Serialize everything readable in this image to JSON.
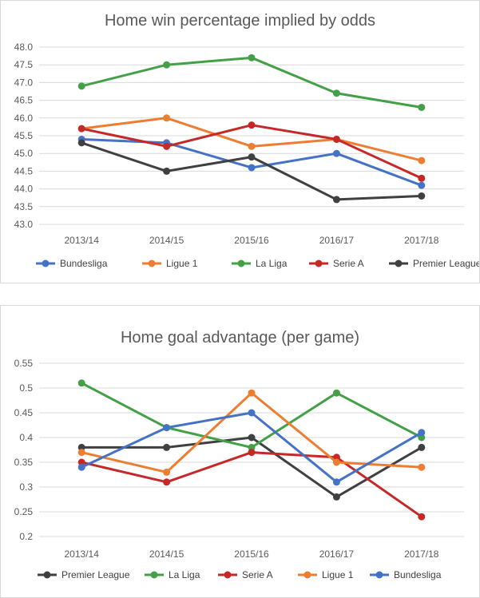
{
  "charts": [
    {
      "type": "line",
      "title": "Home win percentage implied by odds",
      "categories": [
        "2013/14",
        "2014/15",
        "2015/16",
        "2016/17",
        "2017/18"
      ],
      "y_ticks": [
        "43.0",
        "43.5",
        "44.0",
        "44.5",
        "45.0",
        "45.5",
        "46.0",
        "46.5",
        "47.0",
        "47.5",
        "48.0"
      ],
      "ylim": [
        43.0,
        48.0
      ],
      "grid": true,
      "legend_position": "bottom",
      "series": [
        {
          "name": "Bundesliga",
          "color": "#4472c4",
          "values": [
            45.4,
            45.3,
            44.6,
            45.0,
            44.1
          ]
        },
        {
          "name": "Ligue 1",
          "color": "#ed7d31",
          "values": [
            45.7,
            46.0,
            45.2,
            45.4,
            44.8
          ]
        },
        {
          "name": "La Liga",
          "color": "#43a047",
          "values": [
            46.9,
            47.5,
            47.7,
            46.7,
            46.3
          ]
        },
        {
          "name": "Serie A",
          "color": "#c62828",
          "values": [
            45.7,
            45.2,
            45.8,
            45.4,
            44.3
          ]
        },
        {
          "name": "Premier League",
          "color": "#404040",
          "values": [
            45.3,
            44.5,
            44.9,
            43.7,
            43.8
          ]
        }
      ]
    },
    {
      "type": "line",
      "title": "Home goal advantage (per game)",
      "categories": [
        "2013/14",
        "2014/15",
        "2015/16",
        "2016/17",
        "2017/18"
      ],
      "y_ticks": [
        "0.2",
        "0.25",
        "0.3",
        "0.35",
        "0.4",
        "0.45",
        "0.5",
        "0.55"
      ],
      "ylim": [
        0.2,
        0.55
      ],
      "grid": true,
      "legend_position": "bottom",
      "series": [
        {
          "name": "Premier League",
          "color": "#404040",
          "values": [
            0.38,
            0.38,
            0.4,
            0.28,
            0.38
          ]
        },
        {
          "name": "La Liga",
          "color": "#43a047",
          "values": [
            0.51,
            0.42,
            0.38,
            0.49,
            0.4
          ]
        },
        {
          "name": "Serie A",
          "color": "#c62828",
          "values": [
            0.35,
            0.31,
            0.37,
            0.36,
            0.24
          ]
        },
        {
          "name": "Ligue 1",
          "color": "#ed7d31",
          "values": [
            0.37,
            0.33,
            0.49,
            0.35,
            0.34
          ]
        },
        {
          "name": "Bundesliga",
          "color": "#4472c4",
          "values": [
            0.34,
            0.42,
            0.45,
            0.31,
            0.41
          ]
        }
      ]
    }
  ]
}
